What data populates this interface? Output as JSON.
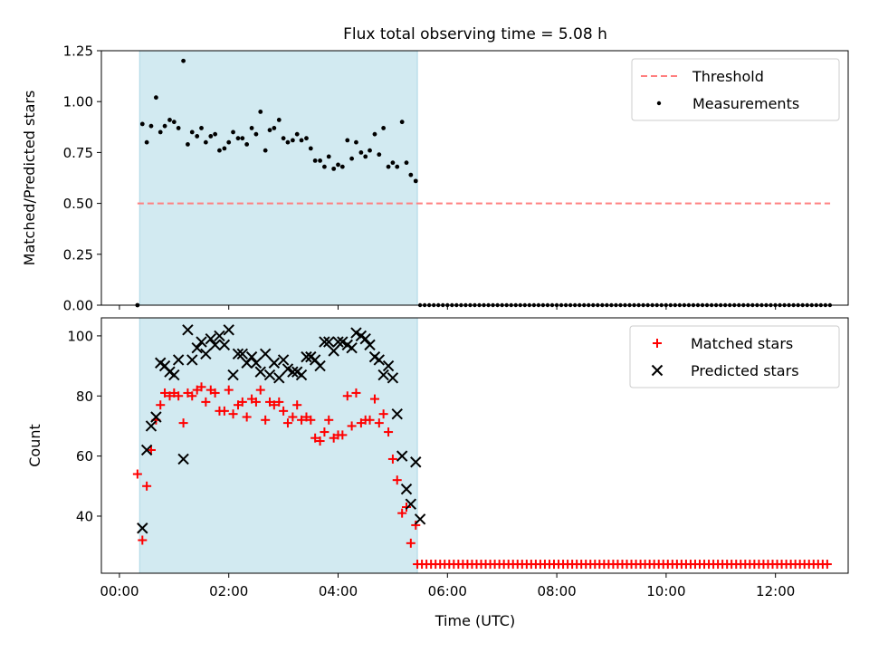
{
  "figure": {
    "title": "Flux total observing time = 5.08 h",
    "xlabel": "Time (UTC)"
  },
  "colors": {
    "shade": "#add8e6",
    "threshold": "#ff7f7f",
    "measurement": "#000000",
    "matched": "#ff0000",
    "predicted": "#000000"
  },
  "chart_data": [
    {
      "type": "scatter",
      "ylabel": "Matched/Predicted stars",
      "xlim": [
        "-0.33",
        13.33
      ],
      "ylim": [
        0,
        1.25
      ],
      "yticks": [
        0.0,
        0.25,
        0.5,
        0.75,
        1.0,
        1.25
      ],
      "ytick_labels": [
        "0.00",
        "0.25",
        "0.50",
        "0.75",
        "1.00",
        "1.25"
      ],
      "xaxis_tick_labels_shown": false,
      "shaded_interval_hours": [
        0.37,
        5.45
      ],
      "legend": {
        "placement": "top-right",
        "entries": [
          "Threshold",
          "Measurements"
        ]
      },
      "threshold": {
        "name": "Threshold",
        "y": 0.5,
        "x_range_hours": [
          0.33,
          13.0
        ],
        "style": "dashed"
      },
      "measurements": {
        "name": "Measurements",
        "x_hours": [
          0.33,
          0.42,
          0.5,
          0.58,
          0.67,
          0.75,
          0.83,
          0.92,
          1.0,
          1.08,
          1.17,
          1.25,
          1.33,
          1.42,
          1.5,
          1.58,
          1.67,
          1.75,
          1.83,
          1.92,
          2.0,
          2.08,
          2.17,
          2.25,
          2.33,
          2.42,
          2.5,
          2.58,
          2.67,
          2.75,
          2.83,
          2.92,
          3.0,
          3.08,
          3.17,
          3.25,
          3.33,
          3.42,
          3.5,
          3.58,
          3.67,
          3.75,
          3.83,
          3.92,
          4.0,
          4.08,
          4.17,
          4.25,
          4.33,
          4.42,
          4.5,
          4.58,
          4.67,
          4.75,
          4.83,
          4.92,
          5.0,
          5.08,
          5.17,
          5.25,
          5.33,
          5.42
        ],
        "y": [
          0.0,
          0.89,
          0.8,
          0.88,
          1.02,
          0.85,
          0.88,
          0.91,
          0.9,
          0.87,
          1.2,
          0.79,
          0.85,
          0.83,
          0.87,
          0.8,
          0.83,
          0.84,
          0.76,
          0.77,
          0.8,
          0.85,
          0.82,
          0.82,
          0.79,
          0.87,
          0.84,
          0.95,
          0.76,
          0.86,
          0.87,
          0.91,
          0.82,
          0.8,
          0.81,
          0.84,
          0.81,
          0.82,
          0.77,
          0.71,
          0.71,
          0.68,
          0.73,
          0.67,
          0.69,
          0.68,
          0.81,
          0.72,
          0.8,
          0.75,
          0.73,
          0.76,
          0.84,
          0.74,
          0.87,
          0.68,
          0.7,
          0.68,
          0.9,
          0.7,
          0.64,
          0.61
        ],
        "zero_series_x_range_hours": [
          5.5,
          13.0
        ],
        "zero_series_step_hours": 0.0833,
        "zero_series_value": 0.0
      }
    },
    {
      "type": "scatter",
      "ylabel": "Count",
      "xlim": [
        "-0.33",
        13.33
      ],
      "ylim": [
        21,
        106
      ],
      "yticks": [
        40,
        60,
        80,
        100
      ],
      "ytick_labels": [
        "40",
        "60",
        "80",
        "100"
      ],
      "xticks_hours": [
        0,
        2,
        4,
        6,
        8,
        10,
        12
      ],
      "xtick_labels": [
        "00:00",
        "02:00",
        "04:00",
        "06:00",
        "08:00",
        "10:00",
        "12:00"
      ],
      "shaded_interval_hours": [
        0.37,
        5.45
      ],
      "legend": {
        "placement": "top-right",
        "entries": [
          "Matched stars",
          "Predicted stars"
        ]
      },
      "matched": {
        "name": "Matched stars",
        "x_hours": [
          0.33,
          0.42,
          0.5,
          0.58,
          0.67,
          0.75,
          0.83,
          0.92,
          1.0,
          1.08,
          1.17,
          1.25,
          1.33,
          1.42,
          1.5,
          1.58,
          1.67,
          1.75,
          1.83,
          1.92,
          2.0,
          2.08,
          2.17,
          2.25,
          2.33,
          2.42,
          2.5,
          2.58,
          2.67,
          2.75,
          2.83,
          2.92,
          3.0,
          3.08,
          3.17,
          3.25,
          3.33,
          3.42,
          3.5,
          3.58,
          3.67,
          3.75,
          3.83,
          3.92,
          4.0,
          4.08,
          4.17,
          4.25,
          4.33,
          4.42,
          4.5,
          4.58,
          4.67,
          4.75,
          4.83,
          4.92,
          5.0,
          5.08,
          5.17,
          5.25,
          5.33,
          5.42
        ],
        "y": [
          54,
          32,
          50,
          62,
          72,
          77,
          81,
          80,
          81,
          80,
          71,
          81,
          80,
          82,
          83,
          78,
          82,
          81,
          75,
          75,
          82,
          74,
          77,
          78,
          73,
          79,
          78,
          82,
          72,
          78,
          77,
          78,
          75,
          71,
          73,
          77,
          72,
          73,
          72,
          66,
          65,
          68,
          72,
          66,
          67,
          67,
          80,
          70,
          81,
          71,
          72,
          72,
          79,
          71,
          74,
          68,
          59,
          52,
          41,
          43,
          31,
          37
        ],
        "post_window_x_range_hours": [
          5.45,
          13.0
        ],
        "post_window_step_hours": 0.0833,
        "post_window_value": 24
      },
      "predicted": {
        "name": "Predicted stars",
        "x_hours": [
          0.42,
          0.5,
          0.58,
          0.67,
          0.75,
          0.83,
          0.92,
          1.0,
          1.08,
          1.17,
          1.25,
          1.33,
          1.42,
          1.5,
          1.58,
          1.67,
          1.75,
          1.83,
          1.92,
          2.0,
          2.08,
          2.17,
          2.25,
          2.33,
          2.42,
          2.5,
          2.58,
          2.67,
          2.75,
          2.83,
          2.92,
          3.0,
          3.08,
          3.17,
          3.25,
          3.33,
          3.42,
          3.5,
          3.58,
          3.67,
          3.75,
          3.83,
          3.92,
          4.0,
          4.08,
          4.17,
          4.25,
          4.33,
          4.42,
          4.5,
          4.58,
          4.67,
          4.75,
          4.83,
          4.92,
          5.0,
          5.08,
          5.17,
          5.25,
          5.33,
          5.42,
          5.5
        ],
        "y": [
          36,
          62,
          70,
          73,
          91,
          90,
          88,
          87,
          92,
          59,
          102,
          92,
          96,
          98,
          94,
          99,
          97,
          100,
          97,
          102,
          87,
          94,
          94,
          91,
          93,
          91,
          88,
          94,
          87,
          91,
          86,
          92,
          89,
          88,
          88,
          87,
          93,
          93,
          92,
          90,
          98,
          98,
          95,
          98,
          98,
          97,
          96,
          101,
          100,
          99,
          97,
          93,
          92,
          87,
          90,
          86,
          74,
          60,
          49,
          44,
          58,
          39
        ]
      }
    }
  ]
}
